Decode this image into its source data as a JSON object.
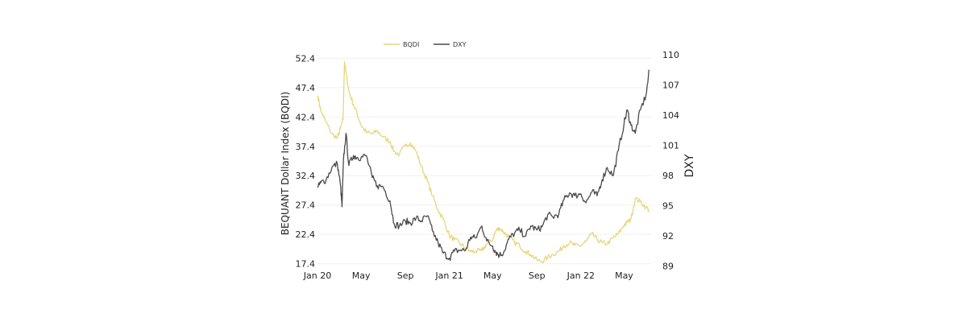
{
  "chart_data": {
    "type": "line",
    "title": "",
    "xlabel": "",
    "ylabel_left": "BEQUANT Dollar Index (BQDI)",
    "ylabel_right": "DXY",
    "x_range": [
      "2020-01-01",
      "2022-07-15"
    ],
    "x_tick_labels": [
      {
        "date": "2020-01-01",
        "label": "Jan 20"
      },
      {
        "date": "2020-05-01",
        "label": "May"
      },
      {
        "date": "2020-09-01",
        "label": "Sep"
      },
      {
        "date": "2021-01-01",
        "label": "Jan 21"
      },
      {
        "date": "2021-05-01",
        "label": "May"
      },
      {
        "date": "2021-09-01",
        "label": "Sep"
      },
      {
        "date": "2022-01-01",
        "label": "Jan 22"
      },
      {
        "date": "2022-05-01",
        "label": "May"
      }
    ],
    "y_left_ticks": [
      17.4,
      22.4,
      27.4,
      32.4,
      37.4,
      42.4,
      47.4,
      52.4
    ],
    "y_right_ticks": [
      89,
      92,
      95,
      98,
      101,
      104,
      107,
      110
    ],
    "y_left_range": [
      16.8,
      53.0
    ],
    "y_right_range": [
      88.9,
      110.0
    ],
    "grid": true,
    "legend_position": "top-center",
    "series": [
      {
        "name": "BQDI",
        "axis": "left",
        "color": "#e8d57a",
        "x": [
          "2020-01-02",
          "2020-01-10",
          "2020-01-25",
          "2020-02-10",
          "2020-02-25",
          "2020-03-05",
          "2020-03-12",
          "2020-03-16",
          "2020-03-20",
          "2020-03-28",
          "2020-04-10",
          "2020-04-20",
          "2020-05-01",
          "2020-05-15",
          "2020-06-01",
          "2020-06-15",
          "2020-07-01",
          "2020-07-20",
          "2020-08-01",
          "2020-08-15",
          "2020-09-01",
          "2020-09-15",
          "2020-10-01",
          "2020-10-15",
          "2020-11-01",
          "2020-11-15",
          "2020-12-01",
          "2020-12-15",
          "2021-01-01",
          "2021-01-15",
          "2021-02-01",
          "2021-02-15",
          "2021-03-01",
          "2021-03-15",
          "2021-04-01",
          "2021-04-15",
          "2021-05-01",
          "2021-05-10",
          "2021-05-20",
          "2021-06-01",
          "2021-06-15",
          "2021-07-01",
          "2021-07-15",
          "2021-08-01",
          "2021-08-15",
          "2021-09-01",
          "2021-09-15",
          "2021-10-01",
          "2021-10-15",
          "2021-11-01",
          "2021-11-15",
          "2021-12-01",
          "2021-12-15",
          "2022-01-01",
          "2022-01-15",
          "2022-02-01",
          "2022-02-15",
          "2022-03-01",
          "2022-03-15",
          "2022-04-01",
          "2022-04-15",
          "2022-05-01",
          "2022-05-10",
          "2022-05-20",
          "2022-06-01",
          "2022-06-15",
          "2022-07-01",
          "2022-07-10"
        ],
        "values": [
          46.0,
          43.5,
          41.5,
          39.5,
          38.8,
          40.5,
          42.0,
          51.8,
          50.0,
          46.8,
          44.5,
          43.0,
          41.0,
          39.8,
          39.5,
          40.0,
          39.0,
          38.2,
          36.5,
          36.0,
          37.5,
          38.0,
          36.5,
          34.0,
          31.5,
          29.0,
          26.5,
          25.0,
          22.2,
          21.5,
          20.8,
          20.0,
          19.5,
          19.5,
          19.6,
          20.8,
          21.5,
          23.0,
          23.5,
          22.8,
          22.0,
          21.0,
          20.5,
          19.5,
          19.0,
          18.0,
          17.8,
          18.5,
          19.0,
          19.5,
          20.5,
          21.0,
          20.5,
          20.5,
          21.2,
          22.5,
          21.5,
          21.0,
          20.8,
          21.8,
          22.5,
          24.0,
          24.5,
          25.0,
          28.5,
          28.0,
          27.0,
          26.5
        ]
      },
      {
        "name": "DXY",
        "axis": "right",
        "color": "#4a4a4a",
        "x": [
          "2020-01-02",
          "2020-01-10",
          "2020-01-25",
          "2020-02-10",
          "2020-02-25",
          "2020-03-05",
          "2020-03-09",
          "2020-03-13",
          "2020-03-20",
          "2020-03-28",
          "2020-04-10",
          "2020-04-20",
          "2020-05-01",
          "2020-05-15",
          "2020-06-01",
          "2020-06-15",
          "2020-07-01",
          "2020-07-20",
          "2020-08-01",
          "2020-08-15",
          "2020-09-01",
          "2020-09-15",
          "2020-10-01",
          "2020-10-15",
          "2020-11-01",
          "2020-11-15",
          "2020-12-01",
          "2020-12-15",
          "2021-01-01",
          "2021-01-15",
          "2021-02-01",
          "2021-02-15",
          "2021-03-01",
          "2021-03-15",
          "2021-04-01",
          "2021-04-15",
          "2021-05-01",
          "2021-05-10",
          "2021-05-20",
          "2021-06-01",
          "2021-06-15",
          "2021-07-01",
          "2021-07-15",
          "2021-08-01",
          "2021-08-15",
          "2021-09-01",
          "2021-09-15",
          "2021-10-01",
          "2021-10-15",
          "2021-11-01",
          "2021-11-15",
          "2021-12-01",
          "2021-12-15",
          "2022-01-01",
          "2022-01-15",
          "2022-02-01",
          "2022-02-15",
          "2022-03-01",
          "2022-03-15",
          "2022-04-01",
          "2022-04-15",
          "2022-05-01",
          "2022-05-10",
          "2022-05-20",
          "2022-06-01",
          "2022-06-15",
          "2022-07-01",
          "2022-07-10"
        ],
        "values": [
          96.8,
          97.3,
          97.6,
          98.8,
          99.2,
          97.0,
          94.9,
          99.5,
          102.2,
          99.0,
          100.0,
          99.8,
          99.8,
          100.0,
          97.8,
          97.0,
          96.9,
          95.5,
          93.2,
          93.0,
          93.5,
          93.3,
          93.8,
          93.5,
          94.0,
          92.5,
          91.3,
          90.3,
          89.8,
          90.5,
          90.6,
          90.6,
          91.9,
          91.8,
          93.0,
          91.5,
          91.0,
          90.4,
          90.1,
          90.4,
          91.7,
          92.3,
          92.6,
          92.0,
          93.0,
          92.6,
          92.9,
          94.1,
          93.9,
          94.2,
          95.6,
          96.3,
          96.0,
          96.2,
          95.3,
          96.4,
          96.0,
          97.6,
          98.8,
          98.0,
          100.5,
          103.2,
          104.5,
          103.0,
          102.2,
          104.5,
          106.0,
          108.5
        ]
      }
    ]
  }
}
